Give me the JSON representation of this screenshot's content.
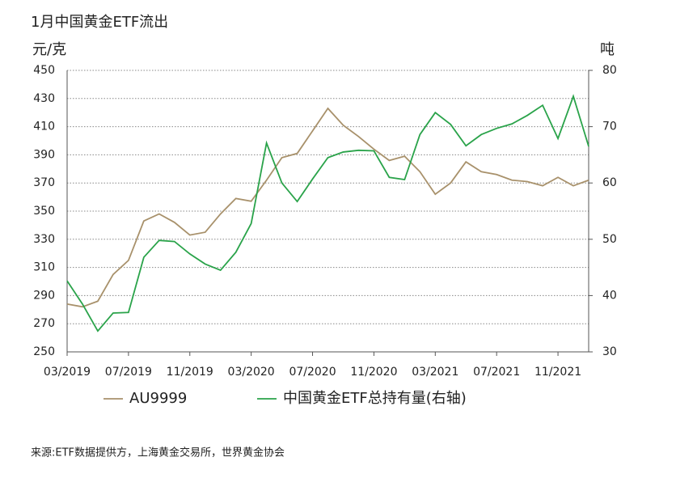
{
  "chart_data": {
    "type": "line",
    "title": "1月中国黄金ETF流出",
    "y_label": "元/克",
    "y2_label": "吨",
    "source": "来源:ETF数据提供方，上海黄金交易所，世界黄金协会",
    "categories": [
      "03/2019",
      null,
      null,
      null,
      "07/2019",
      null,
      null,
      null,
      "11/2019",
      null,
      null,
      null,
      "03/2020",
      null,
      null,
      null,
      "07/2020",
      null,
      null,
      null,
      "11/2020",
      null,
      null,
      null,
      "03/2021",
      null,
      null,
      null,
      "07/2021",
      null,
      null,
      null,
      "11/2021",
      null,
      null
    ],
    "series": [
      {
        "name": "AU9999",
        "color": "#a8916b",
        "values": [
          284,
          282,
          286,
          305,
          315,
          343,
          348,
          342,
          333,
          335,
          348,
          359,
          357,
          372,
          388,
          391,
          407,
          423,
          411,
          403,
          394,
          386,
          389,
          378,
          362,
          370,
          385,
          378,
          376,
          372,
          371,
          368,
          374,
          368,
          372
        ]
      },
      {
        "name": "中国黄金ETF总持有量(右轴)",
        "color": "#2aa34a",
        "axis": "y2",
        "values": [
          42.6,
          38.5,
          33.7,
          36.9,
          37,
          46.8,
          49.8,
          49.6,
          47.4,
          45.6,
          44.5,
          47.7,
          52.8,
          67.1,
          60,
          56.7,
          60.7,
          64.5,
          65.5,
          65.8,
          65.7,
          61,
          60.6,
          68.6,
          72.5,
          70.4,
          66.6,
          68.6,
          69.7,
          70.5,
          72,
          73.8,
          67.9,
          75.4,
          66.5
        ]
      }
    ],
    "ylim": [
      250,
      450
    ],
    "yticks": [
      250,
      270,
      290,
      310,
      330,
      350,
      370,
      390,
      410,
      430,
      450
    ],
    "y2lim": [
      30,
      80
    ],
    "y2ticks": [
      30,
      40,
      50,
      60,
      70,
      80
    ],
    "grid": true
  }
}
